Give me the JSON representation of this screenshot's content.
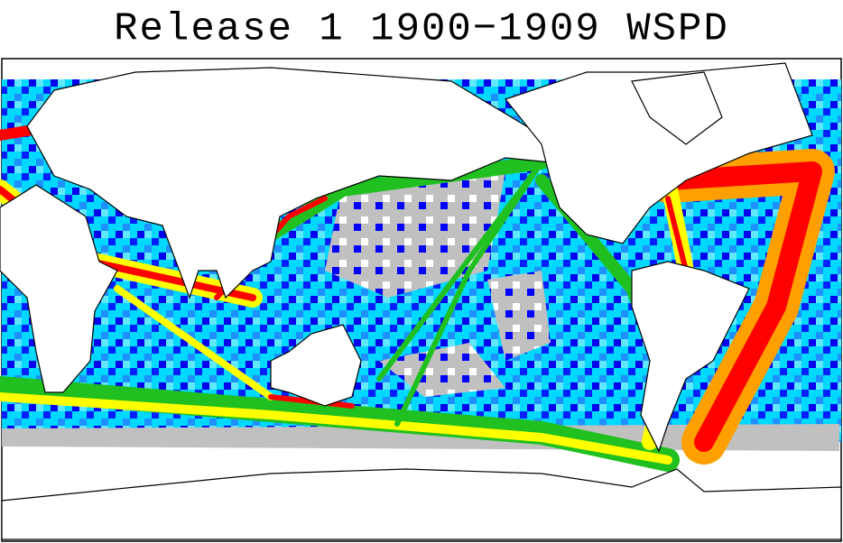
{
  "title": "Release 1 1900−1909 WSPD"
}
